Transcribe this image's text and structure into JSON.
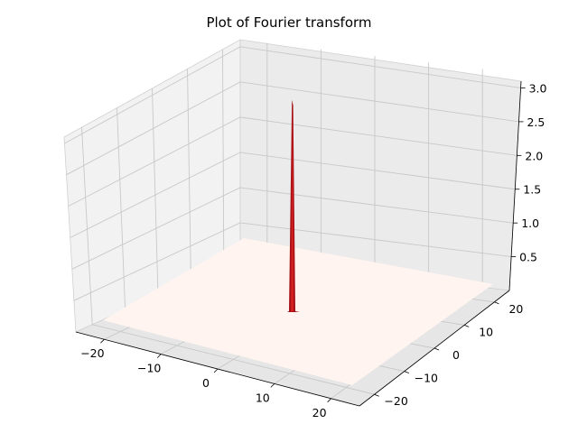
{
  "chart_data": {
    "type": "surface3d",
    "title": "Plot of Fourier transform",
    "xlabel": "",
    "ylabel": "",
    "zlabel": "",
    "x_ticks": [
      -20,
      -10,
      0,
      10,
      20
    ],
    "y_ticks": [
      -20,
      -10,
      0,
      10,
      20
    ],
    "z_ticks": [
      0.5,
      1.0,
      1.5,
      2.0,
      2.5,
      3.0
    ],
    "x_tick_labels": [
      "−20",
      "−10",
      "0",
      "10",
      "20"
    ],
    "y_tick_labels": [
      "−20",
      "−10",
      "0",
      "10",
      "20"
    ],
    "z_tick_labels": [
      "0.5",
      "1.0",
      "1.5",
      "2.0",
      "2.5",
      "3.0"
    ],
    "xlim": [
      -25,
      25
    ],
    "ylim": [
      -25,
      25
    ],
    "zlim": [
      0,
      3.1
    ],
    "surface": {
      "colormap": "Reds",
      "base_color": "#fff5f0",
      "peak_color": "#a50f15",
      "peak_x": 0,
      "peak_y": 0,
      "peak_z": 3.0,
      "floor_z": 0.0
    },
    "grid": true
  }
}
